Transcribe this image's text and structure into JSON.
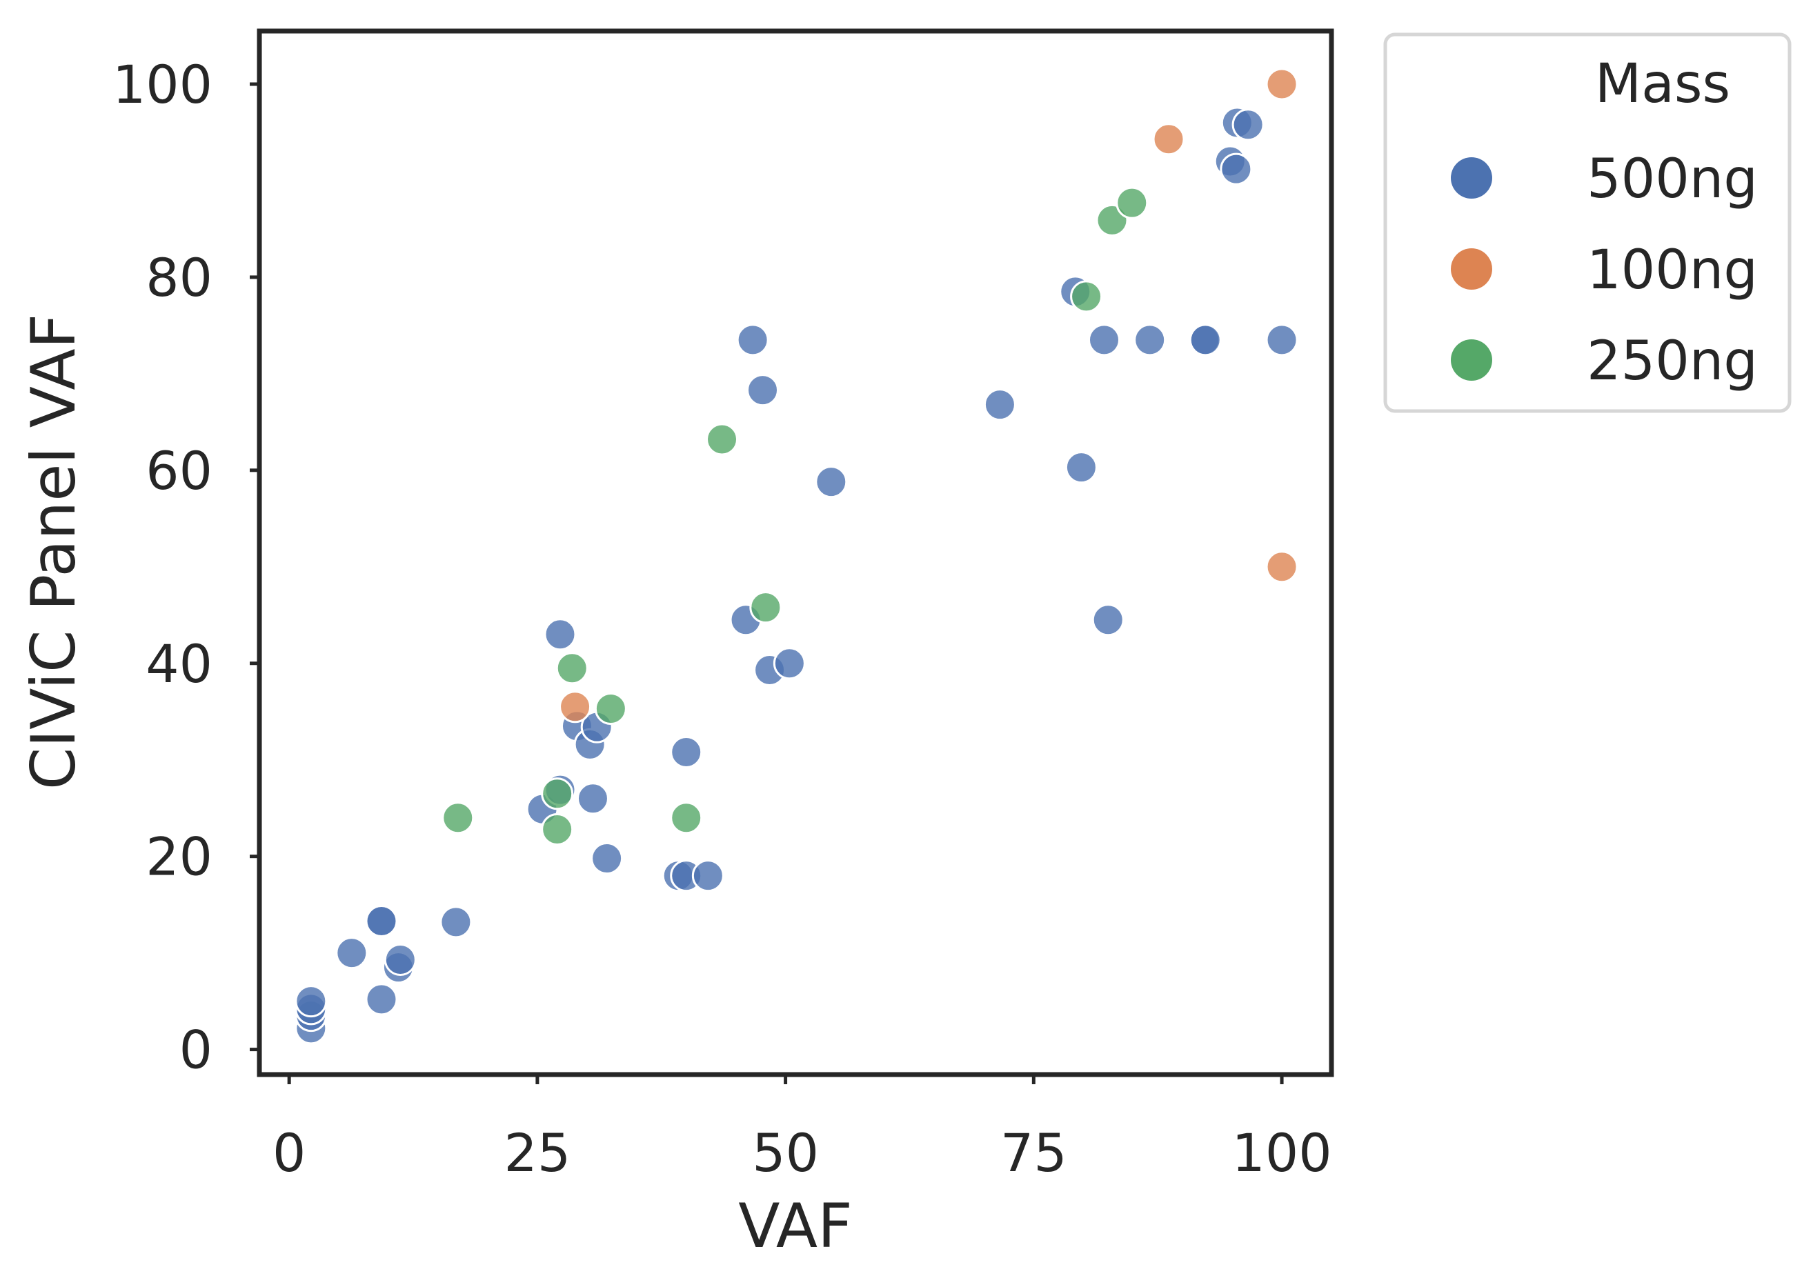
{
  "chart_data": {
    "type": "scatter",
    "xlabel": "VAF",
    "ylabel": "CIViC Panel VAF",
    "xlim": [
      -3,
      105
    ],
    "ylim": [
      -2.6,
      105.5
    ],
    "xticks": [
      0,
      25,
      50,
      75,
      100
    ],
    "yticks": [
      0,
      20,
      40,
      60,
      80,
      100
    ],
    "grid": false,
    "legend": {
      "title": "Mass",
      "placement": "outside-top-right",
      "entries": [
        {
          "label": "500ng",
          "color": "#4c72b0"
        },
        {
          "label": "100ng",
          "color": "#dd8452"
        },
        {
          "label": "250ng",
          "color": "#55a868"
        }
      ]
    },
    "series": [
      {
        "name": "500ng",
        "color": "#4c72b0",
        "points": [
          [
            2.2,
            2.2
          ],
          [
            2.2,
            3.5
          ],
          [
            2.2,
            4.2
          ],
          [
            2.2,
            5.0
          ],
          [
            6.3,
            10.0
          ],
          [
            9.3,
            5.2
          ],
          [
            9.3,
            13.3
          ],
          [
            9.3,
            13.3
          ],
          [
            11.0,
            8.5
          ],
          [
            11.2,
            9.3
          ],
          [
            16.8,
            13.2
          ],
          [
            25.5,
            24.9
          ],
          [
            27.3,
            26.9
          ],
          [
            27.3,
            43.0
          ],
          [
            29.0,
            33.5
          ],
          [
            30.3,
            31.6
          ],
          [
            30.6,
            26.0
          ],
          [
            31.0,
            33.4
          ],
          [
            32.0,
            19.8
          ],
          [
            39.2,
            18.0
          ],
          [
            40.0,
            18.0
          ],
          [
            40.0,
            30.8
          ],
          [
            42.2,
            18.0
          ],
          [
            46.0,
            44.5
          ],
          [
            46.7,
            73.5
          ],
          [
            47.7,
            68.3
          ],
          [
            48.4,
            39.3
          ],
          [
            50.4,
            40.0
          ],
          [
            54.6,
            58.8
          ],
          [
            71.6,
            66.8
          ],
          [
            79.2,
            78.5
          ],
          [
            79.8,
            60.3
          ],
          [
            82.1,
            73.5
          ],
          [
            82.5,
            44.5
          ],
          [
            86.7,
            73.5
          ],
          [
            92.2,
            73.5
          ],
          [
            92.3,
            73.5
          ],
          [
            94.8,
            92.0
          ],
          [
            95.4,
            91.2
          ],
          [
            95.5,
            96.0
          ],
          [
            96.6,
            95.8
          ],
          [
            100.0,
            73.5
          ]
        ]
      },
      {
        "name": "100ng",
        "color": "#dd8452",
        "points": [
          [
            28.8,
            35.5
          ],
          [
            88.6,
            94.3
          ],
          [
            100.0,
            100.0
          ],
          [
            100.0,
            50.0
          ]
        ]
      },
      {
        "name": "250ng",
        "color": "#55a868",
        "points": [
          [
            17.0,
            24.0
          ],
          [
            27.0,
            26.5
          ],
          [
            27.0,
            22.8
          ],
          [
            28.5,
            39.5
          ],
          [
            32.4,
            35.3
          ],
          [
            40.0,
            24.0
          ],
          [
            43.6,
            63.2
          ],
          [
            48.0,
            45.8
          ],
          [
            80.3,
            78.0
          ],
          [
            82.9,
            85.9
          ],
          [
            84.9,
            87.7
          ]
        ]
      }
    ]
  }
}
